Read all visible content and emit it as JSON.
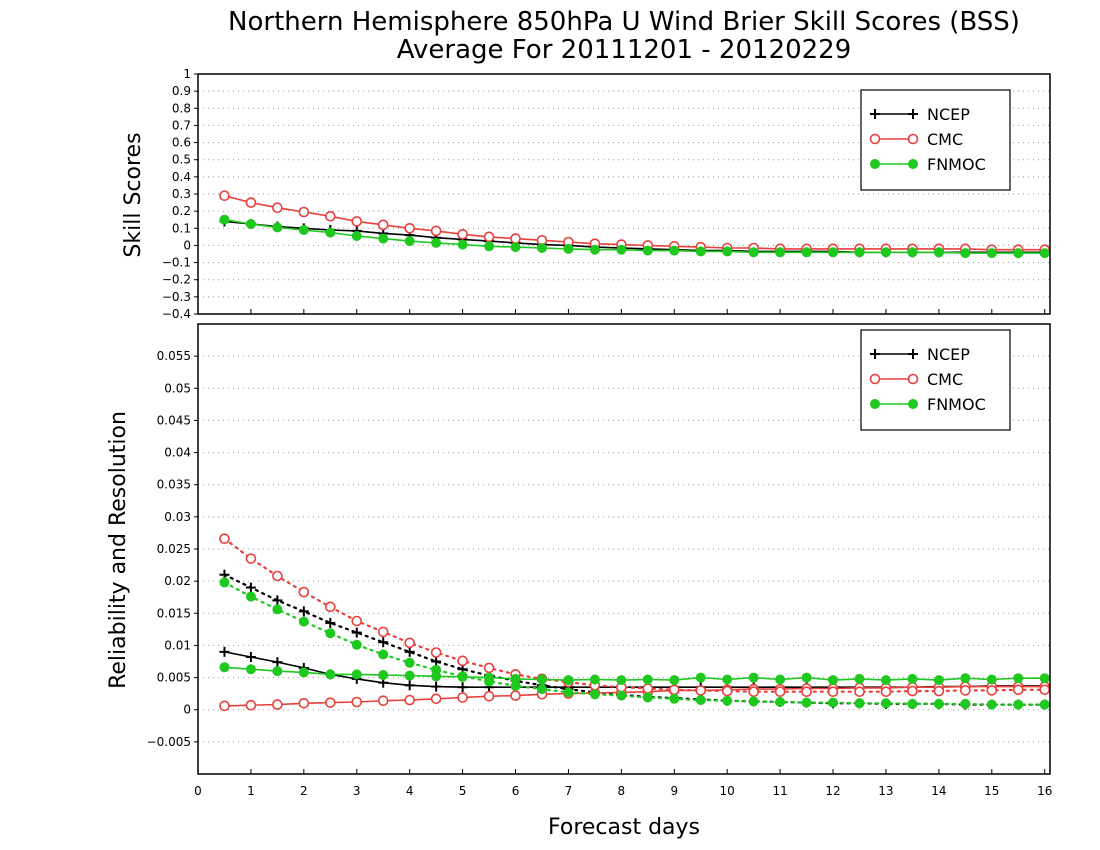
{
  "chart_data": {
    "title": "Northern Hemisphere 850hPa U Wind Brier Skill Scores (BSS)",
    "subtitle": "Average For 20111201 - 20120229",
    "xlabel": "Forecast days",
    "x_ticks": [
      "0",
      "1",
      "2",
      "3",
      "4",
      "5",
      "6",
      "7",
      "8",
      "9",
      "10",
      "11",
      "12",
      "13",
      "14",
      "15",
      "16"
    ],
    "x": [
      0.5,
      1,
      1.5,
      2,
      2.5,
      3,
      3.5,
      4,
      4.5,
      5,
      5.5,
      6,
      6.5,
      7,
      7.5,
      8,
      8.5,
      9,
      9.5,
      10,
      10.5,
      11,
      11.5,
      12,
      12.5,
      13,
      13.5,
      14,
      14.5,
      15,
      15.5,
      16
    ],
    "colors": {
      "NCEP": "#000000",
      "CMC": "#e8403c",
      "FNMOC": "#1ec81e"
    },
    "panels": [
      {
        "type": "line",
        "ylabel": "Skill Scores",
        "ylim": [
          -0.4,
          1
        ],
        "y_ticks": [
          "1",
          "0.9",
          "0.8",
          "0.7",
          "0.6",
          "0.5",
          "0.4",
          "0.3",
          "0.2",
          "0.1",
          "0",
          "−0.1",
          "−0.2",
          "−0.3",
          "−0.4"
        ],
        "grid": true,
        "legend": {
          "placement": "top-right",
          "entries": [
            "NCEP",
            "CMC",
            "FNMOC"
          ]
        },
        "series": [
          {
            "name": "NCEP",
            "marker": "plus",
            "style": "solid",
            "values": [
              0.14,
              0.125,
              0.11,
              0.1,
              0.09,
              0.085,
              0.07,
              0.06,
              0.045,
              0.035,
              0.025,
              0.015,
              0.005,
              0.0,
              -0.01,
              -0.015,
              -0.02,
              -0.025,
              -0.03,
              -0.03,
              -0.035,
              -0.035,
              -0.035,
              -0.035,
              -0.04,
              -0.04,
              -0.04,
              -0.04,
              -0.04,
              -0.04,
              -0.04,
              -0.04
            ]
          },
          {
            "name": "CMC",
            "marker": "open-circle",
            "style": "solid",
            "values": [
              0.29,
              0.25,
              0.22,
              0.195,
              0.17,
              0.14,
              0.12,
              0.1,
              0.085,
              0.065,
              0.05,
              0.04,
              0.03,
              0.02,
              0.01,
              0.005,
              0.0,
              -0.005,
              -0.01,
              -0.015,
              -0.015,
              -0.02,
              -0.02,
              -0.02,
              -0.02,
              -0.02,
              -0.02,
              -0.02,
              -0.02,
              -0.025,
              -0.025,
              -0.025
            ]
          },
          {
            "name": "FNMOC",
            "marker": "filled-circle",
            "style": "solid",
            "values": [
              0.15,
              0.125,
              0.105,
              0.09,
              0.075,
              0.055,
              0.04,
              0.025,
              0.015,
              0.005,
              -0.005,
              -0.01,
              -0.015,
              -0.02,
              -0.025,
              -0.025,
              -0.03,
              -0.03,
              -0.035,
              -0.035,
              -0.04,
              -0.04,
              -0.04,
              -0.04,
              -0.04,
              -0.04,
              -0.04,
              -0.04,
              -0.045,
              -0.045,
              -0.045,
              -0.045
            ]
          }
        ]
      },
      {
        "type": "line",
        "ylabel": "Reliability and Resolution",
        "ylim": [
          -0.01,
          0.06
        ],
        "y_ticks": [
          "0.055",
          "0.05",
          "0.045",
          "0.04",
          "0.035",
          "0.03",
          "0.025",
          "0.02",
          "0.015",
          "0.01",
          "0.005",
          "0",
          "−0.005"
        ],
        "grid": true,
        "legend": {
          "placement": "top-right",
          "entries": [
            "NCEP",
            "CMC",
            "FNMOC"
          ]
        },
        "series": [
          {
            "name": "NCEP",
            "marker": "plus",
            "style": "solid",
            "values": [
              0.009,
              0.0082,
              0.0074,
              0.0065,
              0.0055,
              0.0048,
              0.0042,
              0.0038,
              0.0036,
              0.0035,
              0.0035,
              0.0035,
              0.0035,
              0.0035,
              0.0035,
              0.0035,
              0.0035,
              0.0035,
              0.0035,
              0.0035,
              0.0035,
              0.0035,
              0.0035,
              0.0035,
              0.0035,
              0.0035,
              0.0035,
              0.0036,
              0.0036,
              0.0037,
              0.0037,
              0.0037
            ]
          },
          {
            "name": "NCEP",
            "marker": "plus",
            "style": "dotted",
            "values": [
              0.021,
              0.019,
              0.017,
              0.0153,
              0.0135,
              0.012,
              0.0105,
              0.009,
              0.0075,
              0.0063,
              0.0053,
              0.0045,
              0.0038,
              0.0032,
              0.0027,
              0.0023,
              0.002,
              0.0018,
              0.0016,
              0.0014,
              0.0013,
              0.0012,
              0.0011,
              0.001,
              0.001,
              0.0009,
              0.0009,
              0.0009,
              0.0008,
              0.0008,
              0.0008,
              0.0008
            ]
          },
          {
            "name": "CMC",
            "marker": "open-circle",
            "style": "solid",
            "values": [
              0.0006,
              0.0007,
              0.0008,
              0.001,
              0.0011,
              0.0012,
              0.0014,
              0.0015,
              0.0017,
              0.0019,
              0.0021,
              0.0022,
              0.0024,
              0.0025,
              0.0026,
              0.0027,
              0.0028,
              0.003,
              0.003,
              0.0031,
              0.0032,
              0.0032,
              0.0033,
              0.0033,
              0.0034,
              0.0034,
              0.0035,
              0.0035,
              0.0036,
              0.0036,
              0.0036,
              0.0036
            ]
          },
          {
            "name": "CMC",
            "marker": "open-circle",
            "style": "dotted",
            "values": [
              0.0266,
              0.0235,
              0.0208,
              0.0183,
              0.016,
              0.0138,
              0.0121,
              0.0104,
              0.0089,
              0.0076,
              0.0065,
              0.0055,
              0.0048,
              0.0043,
              0.0038,
              0.0035,
              0.0033,
              0.0031,
              0.003,
              0.0029,
              0.0028,
              0.0028,
              0.0028,
              0.0028,
              0.0028,
              0.0028,
              0.0029,
              0.0029,
              0.003,
              0.003,
              0.0031,
              0.0031
            ]
          },
          {
            "name": "FNMOC",
            "marker": "filled-circle",
            "style": "solid",
            "values": [
              0.0066,
              0.0063,
              0.006,
              0.0058,
              0.0055,
              0.0055,
              0.0054,
              0.0053,
              0.0052,
              0.0051,
              0.005,
              0.0048,
              0.0047,
              0.0046,
              0.0047,
              0.0046,
              0.0047,
              0.0046,
              0.005,
              0.0047,
              0.005,
              0.0047,
              0.005,
              0.0046,
              0.0048,
              0.0046,
              0.0048,
              0.0046,
              0.0049,
              0.0047,
              0.0049,
              0.0049
            ]
          },
          {
            "name": "FNMOC",
            "marker": "filled-circle",
            "style": "dotted",
            "values": [
              0.0198,
              0.0176,
              0.0156,
              0.0137,
              0.0119,
              0.0101,
              0.0086,
              0.0073,
              0.0062,
              0.0052,
              0.0044,
              0.0037,
              0.0032,
              0.0027,
              0.0024,
              0.0022,
              0.0019,
              0.0017,
              0.0015,
              0.0014,
              0.0013,
              0.0012,
              0.0011,
              0.0011,
              0.001,
              0.001,
              0.0009,
              0.0009,
              0.0009,
              0.0008,
              0.0008,
              0.0008
            ]
          }
        ]
      }
    ]
  }
}
